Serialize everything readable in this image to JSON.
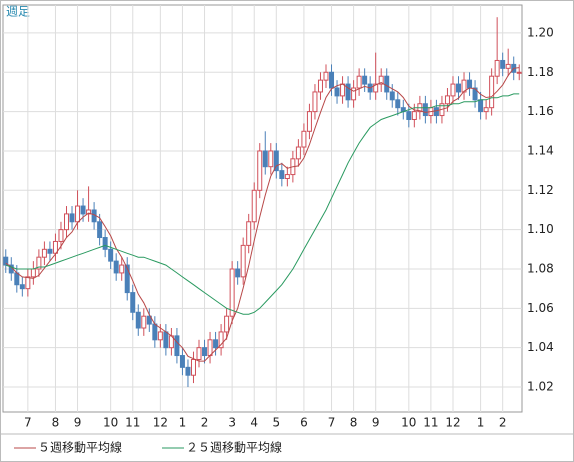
{
  "chart_data": {
    "type": "candlestick",
    "title": "週足",
    "categories": [
      null,
      null,
      null,
      null,
      "7",
      null,
      null,
      null,
      null,
      "8",
      null,
      null,
      null,
      "9",
      null,
      null,
      null,
      null,
      null,
      "10",
      null,
      null,
      null,
      "11",
      null,
      null,
      null,
      null,
      "12",
      null,
      null,
      null,
      "1",
      null,
      null,
      null,
      "2",
      null,
      null,
      null,
      null,
      "3",
      null,
      null,
      null,
      "4",
      null,
      null,
      null,
      "5",
      null,
      null,
      null,
      null,
      "6",
      null,
      null,
      null,
      null,
      "7",
      null,
      null,
      null,
      "8",
      null,
      null,
      null,
      "9",
      null,
      null,
      null,
      null,
      null,
      "10",
      null,
      null,
      null,
      "11",
      null,
      null,
      null,
      "12",
      null,
      null,
      null,
      null,
      "1",
      null,
      null,
      null,
      "2",
      null,
      null,
      null
    ],
    "open": [
      1.086,
      1.082,
      1.078,
      1.072,
      1.07,
      1.076,
      1.08,
      1.086,
      1.09,
      1.088,
      1.094,
      1.1,
      1.108,
      1.104,
      1.112,
      1.108,
      1.11,
      1.104,
      1.096,
      1.09,
      1.084,
      1.078,
      1.082,
      1.068,
      1.058,
      1.05,
      1.056,
      1.052,
      1.044,
      1.048,
      1.04,
      1.046,
      1.036,
      1.03,
      1.026,
      1.034,
      1.04,
      1.036,
      1.044,
      1.04,
      1.048,
      1.056,
      1.08,
      1.076,
      1.092,
      1.104,
      1.12,
      1.14,
      1.132,
      1.14,
      1.13,
      1.126,
      1.128,
      1.136,
      1.142,
      1.15,
      1.16,
      1.17,
      1.176,
      1.18,
      1.172,
      1.168,
      1.174,
      1.166,
      1.172,
      1.178,
      1.174,
      1.17,
      1.174,
      1.178,
      1.17,
      1.166,
      1.162,
      1.16,
      1.156,
      1.16,
      1.164,
      1.158,
      1.162,
      1.158,
      1.164,
      1.168,
      1.174,
      1.17,
      1.176,
      1.172,
      1.166,
      1.16,
      1.162,
      1.178,
      1.186,
      1.182,
      1.184,
      1.18
    ],
    "high": [
      1.09,
      1.086,
      1.082,
      1.076,
      1.08,
      1.084,
      1.09,
      1.094,
      1.094,
      1.098,
      1.104,
      1.112,
      1.112,
      1.12,
      1.116,
      1.122,
      1.114,
      1.108,
      1.1,
      1.094,
      1.088,
      1.086,
      1.086,
      1.072,
      1.062,
      1.06,
      1.06,
      1.056,
      1.052,
      1.052,
      1.05,
      1.05,
      1.04,
      1.034,
      1.038,
      1.044,
      1.044,
      1.048,
      1.048,
      1.052,
      1.06,
      1.084,
      1.084,
      1.096,
      1.108,
      1.124,
      1.144,
      1.15,
      1.144,
      1.144,
      1.134,
      1.132,
      1.14,
      1.146,
      1.154,
      1.164,
      1.174,
      1.18,
      1.184,
      1.184,
      1.176,
      1.178,
      1.178,
      1.176,
      1.182,
      1.182,
      1.178,
      1.19,
      1.182,
      1.182,
      1.174,
      1.17,
      1.166,
      1.164,
      1.164,
      1.168,
      1.168,
      1.166,
      1.166,
      1.168,
      1.172,
      1.178,
      1.178,
      1.18,
      1.18,
      1.176,
      1.17,
      1.166,
      1.182,
      1.208,
      1.19,
      1.192,
      1.188,
      1.184
    ],
    "low": [
      1.078,
      1.074,
      1.068,
      1.066,
      1.066,
      1.072,
      1.076,
      1.082,
      1.084,
      1.084,
      1.09,
      1.096,
      1.1,
      1.1,
      1.104,
      1.104,
      1.1,
      1.092,
      1.086,
      1.08,
      1.074,
      1.074,
      1.064,
      1.054,
      1.046,
      1.046,
      1.048,
      1.04,
      1.04,
      1.036,
      1.036,
      1.032,
      1.026,
      1.02,
      1.022,
      1.03,
      1.032,
      1.032,
      1.036,
      1.036,
      1.044,
      1.052,
      1.072,
      1.072,
      1.088,
      1.1,
      1.116,
      1.128,
      1.128,
      1.126,
      1.122,
      1.122,
      1.124,
      1.132,
      1.138,
      1.146,
      1.156,
      1.166,
      1.172,
      1.168,
      1.164,
      1.164,
      1.162,
      1.162,
      1.168,
      1.17,
      1.166,
      1.166,
      1.17,
      1.166,
      1.162,
      1.158,
      1.156,
      1.152,
      1.152,
      1.156,
      1.154,
      1.154,
      1.154,
      1.154,
      1.16,
      1.164,
      1.166,
      1.166,
      1.168,
      1.162,
      1.156,
      1.156,
      1.158,
      1.174,
      1.178,
      1.178,
      1.176,
      1.176
    ],
    "close": [
      1.082,
      1.078,
      1.072,
      1.07,
      1.076,
      1.08,
      1.086,
      1.09,
      1.088,
      1.094,
      1.1,
      1.108,
      1.104,
      1.112,
      1.108,
      1.11,
      1.104,
      1.096,
      1.09,
      1.084,
      1.078,
      1.082,
      1.068,
      1.058,
      1.05,
      1.056,
      1.052,
      1.044,
      1.048,
      1.04,
      1.046,
      1.036,
      1.03,
      1.026,
      1.034,
      1.04,
      1.036,
      1.044,
      1.04,
      1.048,
      1.056,
      1.08,
      1.076,
      1.092,
      1.104,
      1.12,
      1.14,
      1.132,
      1.14,
      1.13,
      1.126,
      1.128,
      1.136,
      1.142,
      1.15,
      1.16,
      1.17,
      1.176,
      1.18,
      1.172,
      1.168,
      1.174,
      1.166,
      1.172,
      1.178,
      1.174,
      1.17,
      1.174,
      1.178,
      1.17,
      1.166,
      1.162,
      1.16,
      1.156,
      1.16,
      1.164,
      1.158,
      1.162,
      1.158,
      1.164,
      1.168,
      1.174,
      1.17,
      1.176,
      1.172,
      1.166,
      1.16,
      1.162,
      1.178,
      1.186,
      1.182,
      1.184,
      1.18,
      1.18
    ],
    "up_color": "#d0505a",
    "down_color": "#4a80b8",
    "series": [
      {
        "name": "５週移動平均線",
        "color": "#b84848",
        "values": [
          1.083,
          1.081,
          1.078,
          1.076,
          1.0756,
          1.0752,
          1.0768,
          1.0804,
          1.084,
          1.0876,
          1.0916,
          1.096,
          1.0988,
          1.1036,
          1.1064,
          1.1084,
          1.1076,
          1.106,
          1.1016,
          1.0968,
          1.0904,
          1.086,
          1.0804,
          1.074,
          1.0672,
          1.0628,
          1.0568,
          1.052,
          1.05,
          1.048,
          1.046,
          1.0428,
          1.04,
          1.0356,
          1.0344,
          1.0332,
          1.0332,
          1.036,
          1.0388,
          1.0416,
          1.0448,
          1.0536,
          1.06,
          1.0704,
          1.0816,
          1.0944,
          1.1064,
          1.1176,
          1.1272,
          1.1324,
          1.1336,
          1.1312,
          1.132,
          1.1324,
          1.1364,
          1.1432,
          1.1516,
          1.1596,
          1.1672,
          1.1716,
          1.1732,
          1.174,
          1.172,
          1.1704,
          1.1716,
          1.1728,
          1.172,
          1.1736,
          1.1748,
          1.1732,
          1.1716,
          1.17,
          1.1672,
          1.1628,
          1.1608,
          1.1604,
          1.1596,
          1.16,
          1.1604,
          1.1612,
          1.162,
          1.1652,
          1.1668,
          1.1704,
          1.172,
          1.1716,
          1.1688,
          1.1672,
          1.1676,
          1.1704,
          1.1736,
          1.1784,
          1.182,
          1.1824
        ]
      },
      {
        "name": "２５週移動平均線",
        "color": "#2a9a60",
        "values": [
          1.082,
          1.081,
          1.08,
          1.08,
          1.08,
          1.08,
          1.081,
          1.081,
          1.082,
          1.083,
          1.084,
          1.085,
          1.086,
          1.087,
          1.088,
          1.089,
          1.09,
          1.091,
          1.092,
          1.091,
          1.09,
          1.089,
          1.088,
          1.087,
          1.086,
          1.086,
          1.085,
          1.084,
          1.083,
          1.082,
          1.08,
          1.078,
          1.076,
          1.074,
          1.072,
          1.07,
          1.068,
          1.066,
          1.064,
          1.062,
          1.06,
          1.059,
          1.058,
          1.057,
          1.057,
          1.058,
          1.06,
          1.063,
          1.066,
          1.069,
          1.072,
          1.076,
          1.08,
          1.085,
          1.09,
          1.095,
          1.1,
          1.105,
          1.11,
          1.116,
          1.122,
          1.128,
          1.134,
          1.139,
          1.144,
          1.148,
          1.152,
          1.154,
          1.156,
          1.157,
          1.158,
          1.159,
          1.16,
          1.161,
          1.162,
          1.162,
          1.162,
          1.162,
          1.163,
          1.163,
          1.163,
          1.164,
          1.164,
          1.165,
          1.165,
          1.165,
          1.166,
          1.166,
          1.167,
          1.167,
          1.168,
          1.168,
          1.169,
          1.169
        ]
      }
    ],
    "ylim": [
      1.0073,
      1.2142
    ],
    "yticks": [
      1.02,
      1.04,
      1.06,
      1.08,
      {
        "value": 1.1,
        "label": "1.10"
      },
      1.12,
      1.14,
      1.16,
      1.18,
      {
        "value": 1.2,
        "label": "1.20"
      }
    ],
    "grid": true
  }
}
